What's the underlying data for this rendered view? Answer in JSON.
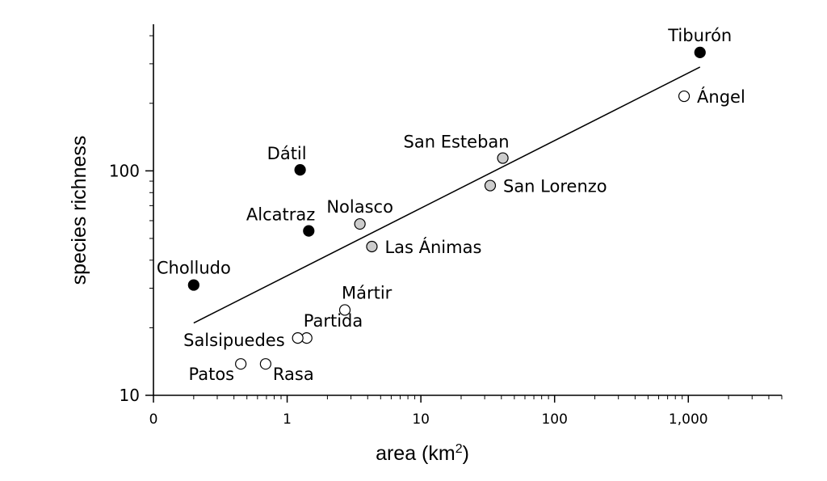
{
  "chart_data": {
    "type": "scatter",
    "title": "",
    "xlabel": "area (km",
    "xlabel_sup": "2",
    "xlabel_close": ")",
    "ylabel": "species richness",
    "x_scale": "log",
    "y_scale": "log",
    "xlim": [
      0.1,
      5000
    ],
    "ylim": [
      10,
      450
    ],
    "x_ticks": [
      {
        "value": 0.1,
        "label": "0"
      },
      {
        "value": 1,
        "label": "1"
      },
      {
        "value": 10,
        "label": "10"
      },
      {
        "value": 100,
        "label": "100"
      },
      {
        "value": 1000,
        "label": "1,000"
      }
    ],
    "y_ticks": [
      {
        "value": 10,
        "label": "10"
      },
      {
        "value": 100,
        "label": "100"
      }
    ],
    "grid": false,
    "fill_colors": {
      "black": "#000000",
      "grey": "#cccccc",
      "white": "#ffffff"
    },
    "points": [
      {
        "name": "Tiburón",
        "x": 1223,
        "y": 337,
        "fill": "black",
        "label_pos": "above"
      },
      {
        "name": "Ángel",
        "x": 930,
        "y": 215,
        "fill": "white",
        "label_pos": "right"
      },
      {
        "name": "Dátil",
        "x": 1.25,
        "y": 101,
        "fill": "black",
        "label_pos": "above-left"
      },
      {
        "name": "Alcatraz",
        "x": 1.45,
        "y": 54,
        "fill": "black",
        "label_pos": "above-left"
      },
      {
        "name": "Cholludo",
        "x": 0.2,
        "y": 31,
        "fill": "black",
        "label_pos": "above"
      },
      {
        "name": "San Esteban",
        "x": 41,
        "y": 114,
        "fill": "grey",
        "label_pos": "above-left"
      },
      {
        "name": "San Lorenzo",
        "x": 33,
        "y": 86,
        "fill": "grey",
        "label_pos": "right"
      },
      {
        "name": "Nolasco",
        "x": 3.5,
        "y": 58,
        "fill": "grey",
        "label_pos": "above"
      },
      {
        "name": "Las Ánimas",
        "x": 4.3,
        "y": 46,
        "fill": "grey",
        "label_pos": "right"
      },
      {
        "name": "Mártir",
        "x": 2.7,
        "y": 24,
        "fill": "white",
        "label_pos": "above-right"
      },
      {
        "name": "Partida",
        "x": 1.4,
        "y": 18,
        "fill": "white",
        "label_pos": "above-right"
      },
      {
        "name": "Salsipuedes",
        "x": 1.2,
        "y": 18,
        "fill": "white",
        "label_pos": "left"
      },
      {
        "name": "Patos",
        "x": 0.45,
        "y": 13.8,
        "fill": "white",
        "label_pos": "below-left"
      },
      {
        "name": "Rasa",
        "x": 0.69,
        "y": 13.8,
        "fill": "white",
        "label_pos": "below-right"
      }
    ],
    "trendline": {
      "x": [
        0.2,
        1223
      ],
      "y": [
        21,
        290
      ]
    }
  }
}
